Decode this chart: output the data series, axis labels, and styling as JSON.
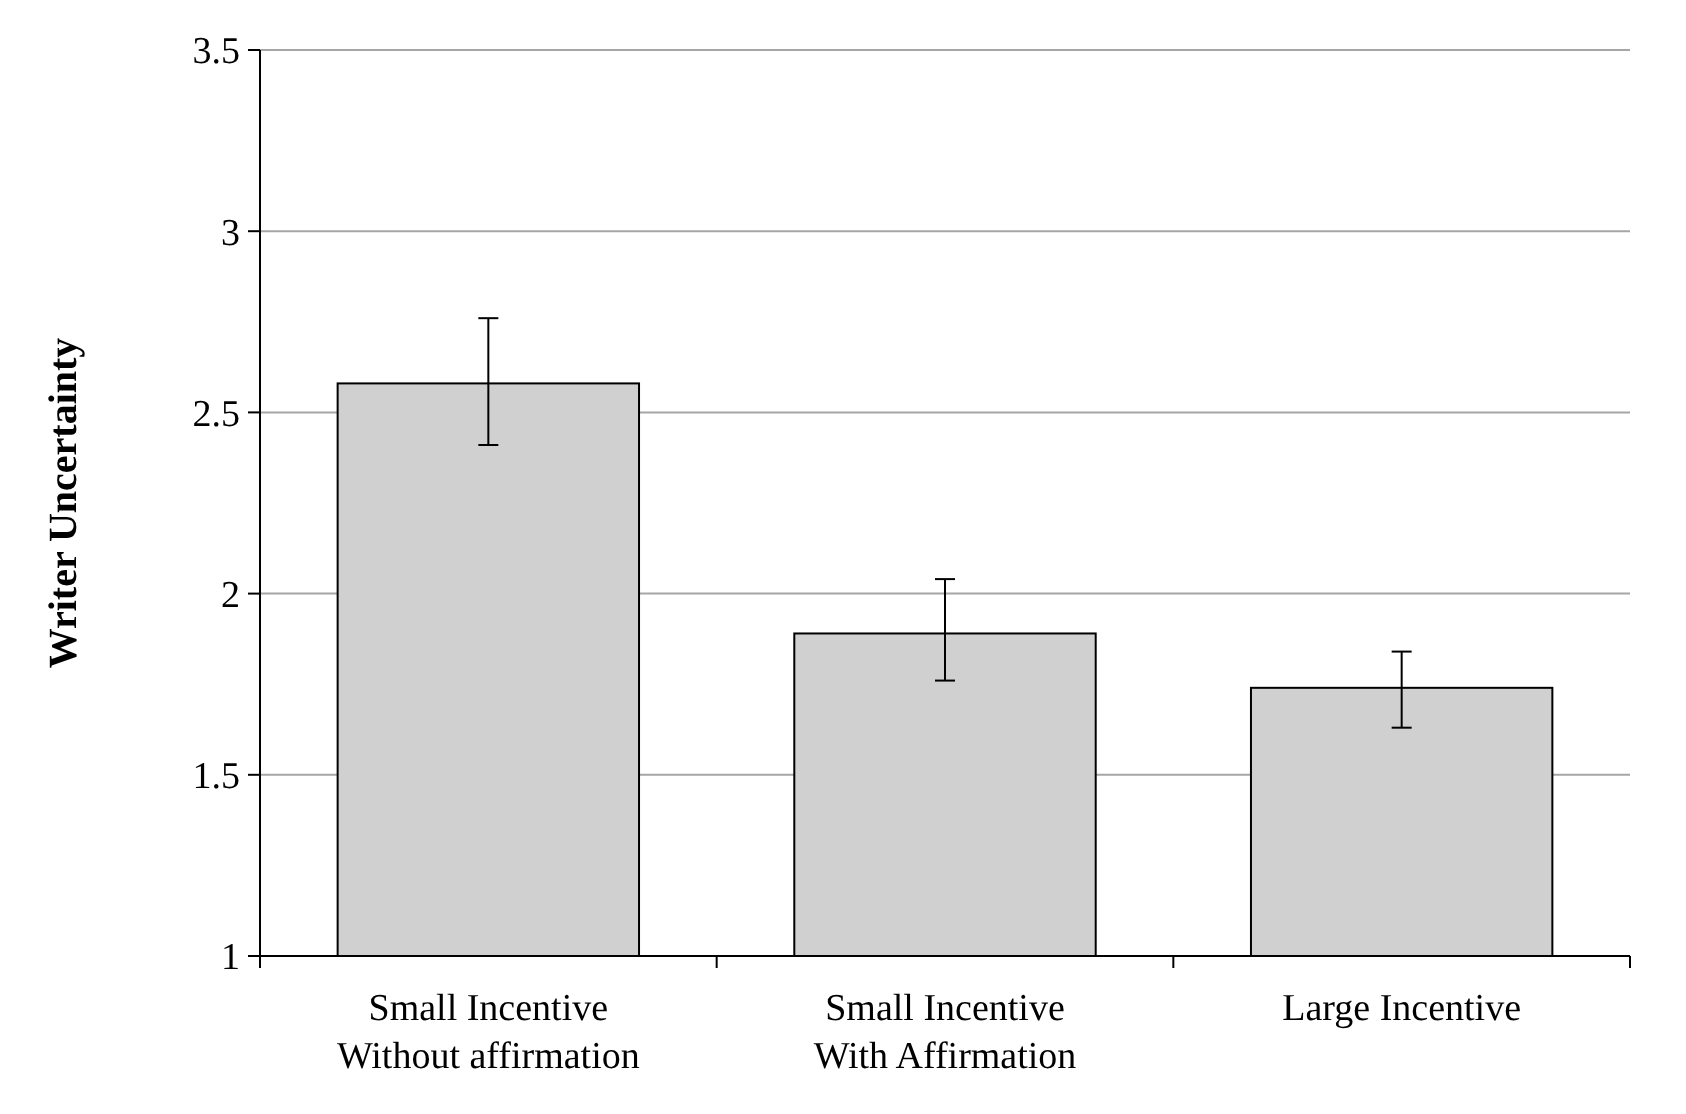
{
  "chart_data": {
    "type": "bar",
    "ylabel": "Writer Uncertainty",
    "categories": [
      "Small Incentive\nWithout affirmation",
      "Small Incentive\nWith Affirmation",
      "Large Incentive"
    ],
    "values": [
      2.58,
      1.89,
      1.74
    ],
    "errors": [
      [
        2.41,
        2.76
      ],
      [
        1.76,
        2.04
      ],
      [
        1.63,
        1.84
      ]
    ],
    "color": "#d0d0d0",
    "ylim": [
      1,
      3.5
    ],
    "yticks": [
      1,
      1.5,
      2,
      2.5,
      3,
      3.5
    ],
    "grid": "y"
  }
}
